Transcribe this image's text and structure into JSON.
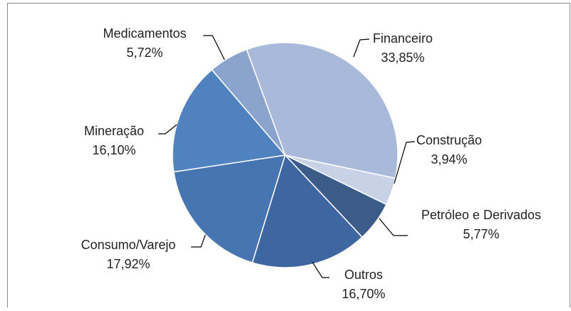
{
  "chart_data": {
    "type": "pie",
    "categories": [
      "Financeiro",
      "Construção",
      "Petróleo e Derivados",
      "Outros",
      "Consumo/Varejo",
      "Mineração",
      "Medicamentos"
    ],
    "values": [
      33.85,
      3.94,
      5.77,
      16.7,
      17.92,
      16.1,
      5.72
    ],
    "value_labels": [
      "33,85%",
      "3,94%",
      "5,77%",
      "16,70%",
      "17,92%",
      "16,10%",
      "5,72%"
    ],
    "colors": [
      "#a9b9d9",
      "#c8d2e6",
      "#3b5b88",
      "#3e67a1",
      "#4675b1",
      "#4f82be",
      "#8ba4cd"
    ]
  }
}
